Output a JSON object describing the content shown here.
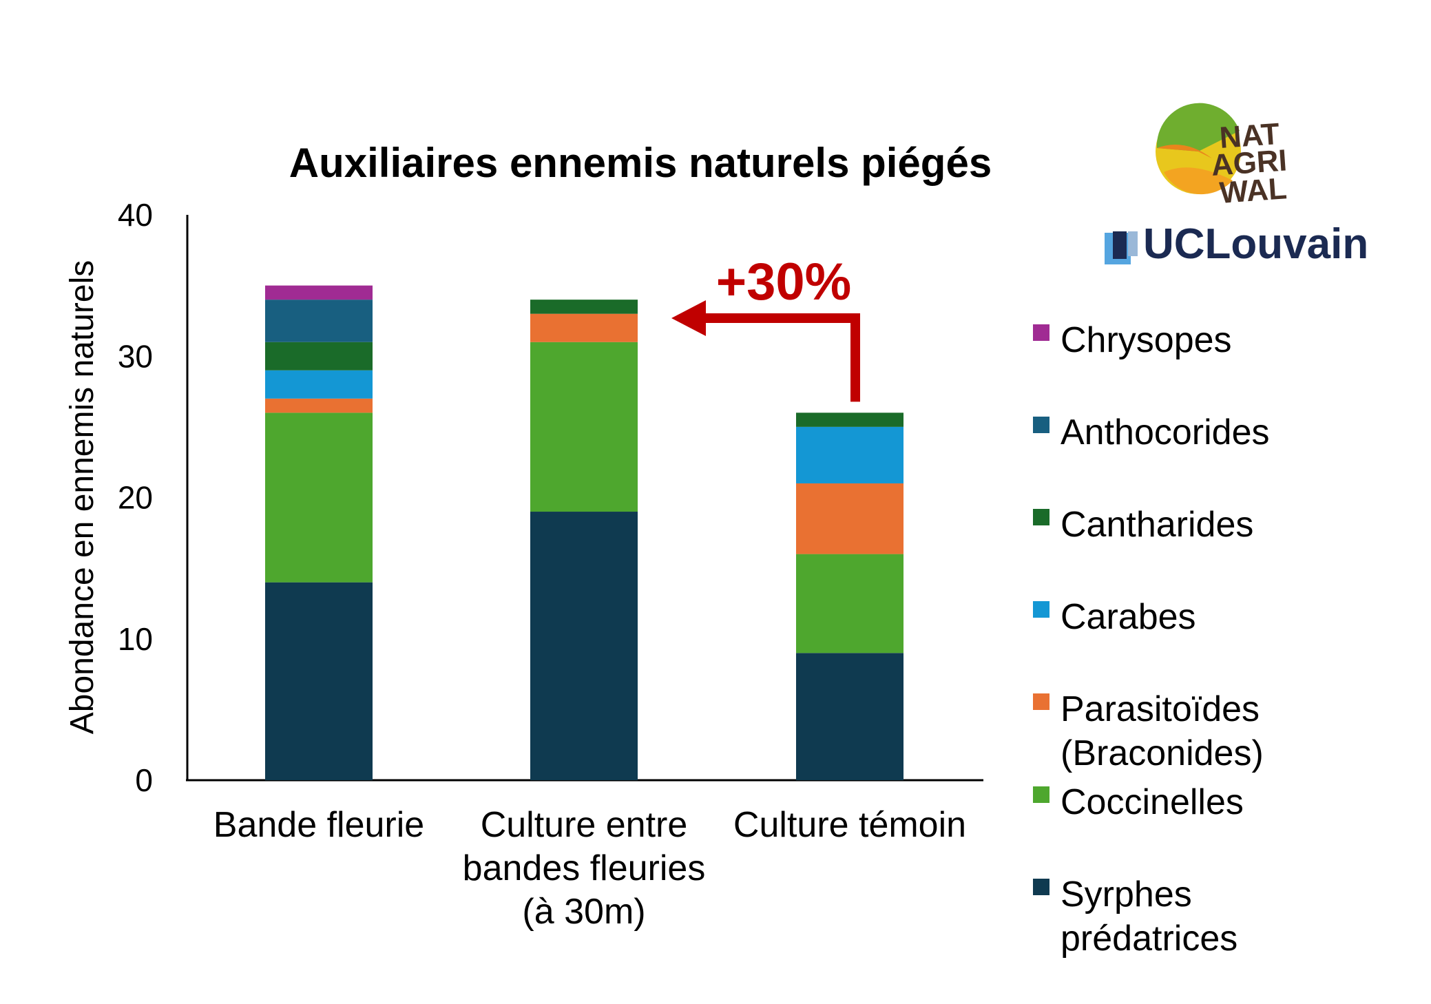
{
  "logos": {
    "natagriwal": [
      "NAT",
      "AGRI",
      "WAL"
    ],
    "uclouvain": "UCLouvain"
  },
  "colors": {
    "Syrphes prédatrices": "#0f3a50",
    "Coccinelles": "#4ea72e",
    "Parasitoïdes (Braconides)": "#e97132",
    "Carabes": "#1497d4",
    "Cantharides": "#1a6b29",
    "Anthocorides": "#185f80",
    "Chrysopes": "#a02b93",
    "arrow": "#c00000"
  },
  "chart_data": {
    "type": "bar",
    "stacked": true,
    "title": "Auxiliaires ennemis naturels piégés",
    "xlabel": "",
    "ylabel": "Abondance en ennemis naturels",
    "ylim": [
      0,
      40
    ],
    "yticks": [
      0,
      10,
      20,
      30,
      40
    ],
    "grid": false,
    "legend_position": "right",
    "categories": [
      [
        "Bande fleurie"
      ],
      [
        "Culture entre",
        "bandes fleuries",
        "(à 30m)"
      ],
      [
        "Culture témoin"
      ]
    ],
    "series": [
      {
        "name": "Syrphes prédatrices",
        "legend_lines": [
          "Syrphes",
          "prédatrices"
        ],
        "values": [
          14,
          19,
          9
        ]
      },
      {
        "name": "Coccinelles",
        "legend_lines": [
          "Coccinelles"
        ],
        "values": [
          12,
          12,
          7
        ]
      },
      {
        "name": "Parasitoïdes (Braconides)",
        "legend_lines": [
          "Parasitoïdes",
          "(Braconides)"
        ],
        "values": [
          1,
          2,
          5
        ]
      },
      {
        "name": "Carabes",
        "legend_lines": [
          "Carabes"
        ],
        "values": [
          2,
          0,
          4
        ]
      },
      {
        "name": "Cantharides",
        "legend_lines": [
          "Cantharides"
        ],
        "values": [
          2,
          1,
          1
        ]
      },
      {
        "name": "Anthocorides",
        "legend_lines": [
          "Anthocorides"
        ],
        "values": [
          3,
          0,
          0
        ]
      },
      {
        "name": "Chrysopes",
        "legend_lines": [
          "Chrysopes"
        ],
        "values": [
          1,
          0,
          0
        ]
      }
    ],
    "annotation": {
      "text": "+30%",
      "from_category": 2,
      "to_category": 1
    }
  }
}
